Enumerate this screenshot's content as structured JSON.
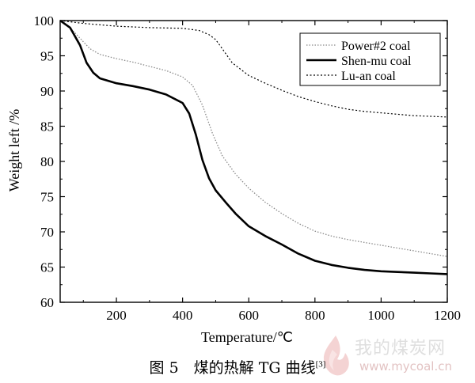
{
  "chart_data": {
    "type": "line",
    "xlabel": "Temperature/℃",
    "ylabel": "Weight left /%",
    "xlim": [
      30,
      1200
    ],
    "ylim": [
      60,
      100
    ],
    "x_ticks": [
      200,
      400,
      600,
      800,
      1000,
      1200
    ],
    "y_ticks": [
      60,
      65,
      70,
      75,
      80,
      85,
      90,
      95,
      100
    ],
    "grid": false,
    "legend_position": "top-right",
    "series": [
      {
        "name": "Power#2 coal",
        "style": "dotted-gray",
        "color": "#8a8a8a",
        "x": [
          30,
          60,
          90,
          120,
          150,
          200,
          250,
          300,
          350,
          400,
          430,
          460,
          490,
          520,
          560,
          600,
          650,
          700,
          750,
          800,
          850,
          900,
          950,
          1000,
          1050,
          1100,
          1150,
          1200
        ],
        "y": [
          100,
          99,
          97.5,
          96,
          95.2,
          94.6,
          94.1,
          93.5,
          92.9,
          92,
          90.8,
          88,
          84,
          80.8,
          78.2,
          76.2,
          74.2,
          72.6,
          71.2,
          70.1,
          69.4,
          68.9,
          68.5,
          68.1,
          67.7,
          67.3,
          66.9,
          66.5
        ]
      },
      {
        "name": "Shen-mu coal",
        "style": "solid-bold",
        "color": "#000000",
        "x": [
          30,
          60,
          90,
          110,
          130,
          150,
          200,
          250,
          300,
          350,
          400,
          420,
          440,
          460,
          480,
          500,
          530,
          560,
          600,
          650,
          700,
          750,
          800,
          850,
          900,
          950,
          1000,
          1050,
          1100,
          1150,
          1200
        ],
        "y": [
          100,
          99,
          96.5,
          94,
          92.6,
          91.8,
          91.1,
          90.7,
          90.2,
          89.5,
          88.3,
          86.8,
          83.8,
          80.2,
          77.6,
          75.9,
          74.2,
          72.6,
          70.8,
          69.4,
          68.2,
          66.9,
          65.9,
          65.3,
          64.9,
          64.6,
          64.4,
          64.3,
          64.2,
          64.1,
          64
        ]
      },
      {
        "name": "Lu-an coal",
        "style": "dashed-fine",
        "color": "#000000",
        "x": [
          30,
          100,
          200,
          300,
          400,
          450,
          480,
          500,
          520,
          550,
          600,
          650,
          700,
          750,
          800,
          850,
          900,
          950,
          1000,
          1050,
          1100,
          1150,
          1200
        ],
        "y": [
          100,
          99.6,
          99.2,
          99,
          98.9,
          98.6,
          98,
          97.3,
          96,
          94,
          92.2,
          91.1,
          90.1,
          89.2,
          88.5,
          87.9,
          87.4,
          87.1,
          86.9,
          86.7,
          86.5,
          86.4,
          86.3
        ]
      }
    ]
  },
  "caption": {
    "label": "图 5　煤的热解 TG 曲线",
    "ref": "[3]"
  },
  "watermark": {
    "brand_text": "我的煤炭网",
    "url_text": "www.mycoal.cn",
    "logo_icon": "flame-logo-icon"
  }
}
